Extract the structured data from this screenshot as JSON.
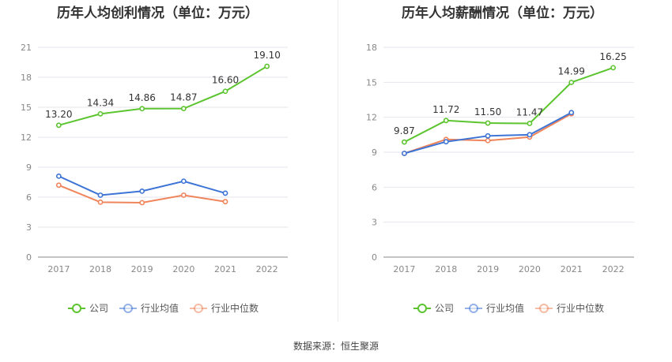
{
  "source": "数据来源：恒生聚源",
  "colors": {
    "company": "#5cc42e",
    "avg": "#3d74d6",
    "median": "#f0845a",
    "axis": "#888888",
    "grid": "#e6e6ee"
  },
  "legend": [
    {
      "key": "company",
      "label": "公司"
    },
    {
      "key": "avg",
      "label": "行业均值"
    },
    {
      "key": "median",
      "label": "行业中位数"
    }
  ],
  "chart_data": [
    {
      "type": "line",
      "title": "历年人均创利情况（单位：万元）",
      "categories": [
        "2017",
        "2018",
        "2019",
        "2020",
        "2021",
        "2022"
      ],
      "ylim": [
        0,
        21
      ],
      "yticks": [
        0,
        3,
        6,
        9,
        12,
        15,
        18,
        21
      ],
      "grid": true,
      "legend_position": "bottom",
      "series": [
        {
          "name": "公司",
          "key": "company",
          "values": [
            13.2,
            14.34,
            14.86,
            14.87,
            16.6,
            19.1
          ],
          "labels": [
            "13.20",
            "14.34",
            "14.86",
            "14.87",
            "16.60",
            "19.10"
          ]
        },
        {
          "name": "行业均值",
          "key": "avg",
          "values": [
            8.1,
            6.2,
            6.6,
            7.6,
            6.4,
            null
          ]
        },
        {
          "name": "行业中位数",
          "key": "median",
          "values": [
            7.2,
            5.5,
            5.45,
            6.2,
            5.55,
            null
          ]
        }
      ]
    },
    {
      "type": "line",
      "title": "历年人均薪酬情况（单位：万元）",
      "categories": [
        "2017",
        "2018",
        "2019",
        "2020",
        "2021",
        "2022"
      ],
      "ylim": [
        0,
        18
      ],
      "yticks": [
        0,
        3,
        6,
        9,
        12,
        15,
        18
      ],
      "grid": true,
      "legend_position": "bottom",
      "series": [
        {
          "name": "公司",
          "key": "company",
          "values": [
            9.87,
            11.72,
            11.5,
            11.47,
            14.99,
            16.25
          ],
          "labels": [
            "9.87",
            "11.72",
            "11.50",
            "11.47",
            "14.99",
            "16.25"
          ]
        },
        {
          "name": "行业均值",
          "key": "avg",
          "values": [
            8.9,
            9.9,
            10.4,
            10.5,
            12.4,
            null
          ]
        },
        {
          "name": "行业中位数",
          "key": "median",
          "values": [
            8.9,
            10.1,
            10.0,
            10.3,
            12.3,
            null
          ]
        }
      ]
    }
  ]
}
